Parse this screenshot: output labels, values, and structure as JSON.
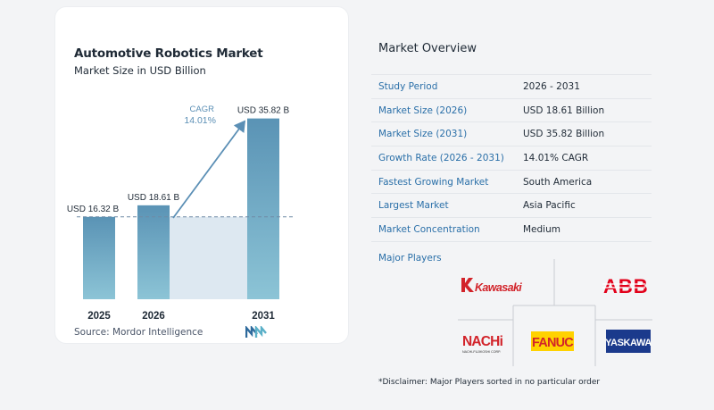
{
  "chart_data": {
    "type": "bar",
    "title": "Automotive Robotics Market",
    "subtitle": "Market Size in USD Billion",
    "categories": [
      "2025",
      "2026",
      "2031"
    ],
    "values": [
      16.32,
      18.61,
      35.82
    ],
    "value_labels": [
      "USD 16.32 B",
      "USD 18.61 B",
      "USD 35.82 B"
    ],
    "cagr_label": "CAGR",
    "cagr_value": "14.01%",
    "source": "Source:  Mordor Intelligence",
    "colors": {
      "bar_top": "#5a93b5",
      "bar_bottom": "#8cc4d6",
      "arrow": "#5b8fb5",
      "band": "#dde8f1"
    }
  },
  "overview": {
    "title": "Market Overview",
    "rows": [
      {
        "label": "Study Period",
        "value": "2026 - 2031"
      },
      {
        "label": "Market Size (2026)",
        "value": "USD 18.61 Billion"
      },
      {
        "label": "Market Size (2031)",
        "value": "USD 35.82 Billion"
      },
      {
        "label": "Growth Rate (2026 - 2031)",
        "value": "14.01% CAGR"
      },
      {
        "label": "Fastest Growing Market",
        "value": "South America"
      },
      {
        "label": "Largest Market",
        "value": "Asia Pacific"
      },
      {
        "label": "Market Concentration",
        "value": "Medium"
      }
    ]
  },
  "players": {
    "title": "Major Players",
    "logos": [
      "Kawasaki",
      "ABB",
      "NACHi",
      "FANUC",
      "YASKAWA"
    ],
    "nachi_sub": "NACHI-FUJIKOSHI CORP."
  },
  "disclaimer": "*Disclaimer: Major Players sorted in no particular order"
}
